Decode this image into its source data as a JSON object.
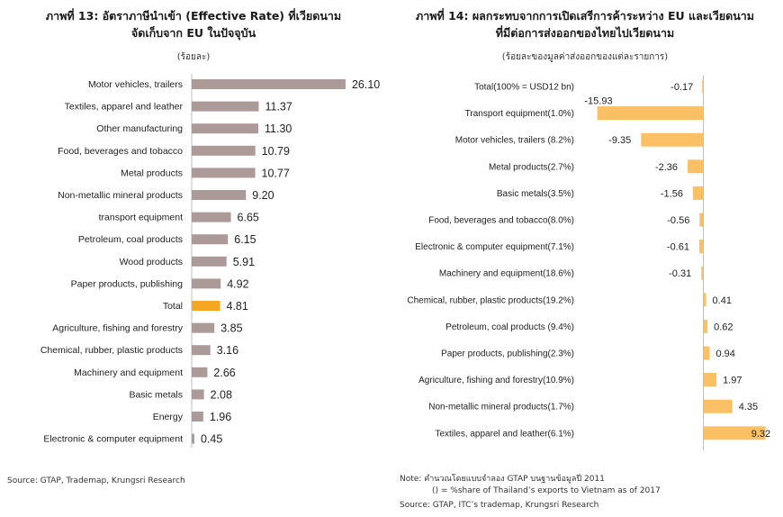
{
  "chart_data": [
    {
      "type": "bar",
      "orientation": "horizontal",
      "title": "ภาพที่ 13: อัตราภาษีนำเข้า (Effective Rate) ที่เวียดนาม",
      "subtitle": "จัดเก็บจาก EU ในปัจจุบัน",
      "unit_label": "(ร้อยละ)",
      "categories": [
        "Motor vehicles, trailers",
        "Textiles, apparel and leather",
        "Other manufacturing",
        "Food, beverages and tobacco",
        "Metal products",
        "Non-metallic mineral products",
        "transport equipment",
        "Petroleum, coal products",
        "Wood products",
        "Paper products, publishing",
        "Total",
        "Agriculture, fishing and forestry",
        "Chemical, rubber, plastic products",
        "Machinery and equipment",
        "Basic metals",
        "Energy",
        "Electronic & computer equipment"
      ],
      "values": [
        26.1,
        11.37,
        11.3,
        10.79,
        10.77,
        9.2,
        6.65,
        6.15,
        5.91,
        4.92,
        4.81,
        3.85,
        3.16,
        2.66,
        2.08,
        1.96,
        0.45
      ],
      "value_labels": [
        "26.10",
        "11.37",
        "11.30",
        "10.79",
        "10.77",
        "9.20",
        "6.65",
        "6.15",
        "5.91",
        "4.92",
        "4.81",
        "3.85",
        "3.16",
        "2.66",
        "2.08",
        "1.96",
        "0.45"
      ],
      "xlim": [
        0,
        30
      ],
      "grid": false,
      "legend": "none",
      "colors": {
        "bar": "#ab9a97",
        "highlight": "#f5a623"
      },
      "highlight_category": "Total",
      "source": "Source: GTAP, Trademap, Krungsri Research"
    },
    {
      "type": "bar",
      "orientation": "horizontal",
      "title": "ภาพที่ 14: ผลกระทบจากการเปิดเสรีการค้าระหว่าง EU และเวียดนาม",
      "subtitle": "ที่มีต่อการส่งออกของไทยไปเวียดนาม",
      "unit_label": "(ร้อยละของมูลค่าส่งออกของแต่ละรายการ)",
      "categories": [
        "Total(100% = USD12 bn)",
        "Transport equipment(1.0%)",
        "Motor vehicles, trailers (8.2%)",
        "Metal products(2.7%)",
        "Basic metals(3.5%)",
        "Food, beverages and tobacco(8.0%)",
        "Electronic & computer equipment(7.1%)",
        "Machinery and equipment(18.6%)",
        "Chemical, rubber, plastic products(19.2%)",
        "Petroleum, coal products (9.4%)",
        "Paper products, publishing(2.3%)",
        "Agriculture, fishing and forestry(10.9%)",
        "Non-metallic mineral products(1.7%)",
        "Textiles, apparel and leather(6.1%)"
      ],
      "values": [
        -0.17,
        -15.93,
        -9.35,
        -2.36,
        -1.56,
        -0.56,
        -0.61,
        -0.31,
        0.41,
        0.62,
        0.94,
        1.97,
        4.35,
        9.32
      ],
      "value_labels": [
        "-0.17",
        "-15.93",
        "-9.35",
        "-2.36",
        "-1.56",
        "-0.56",
        "-0.61",
        "-0.31",
        "0.41",
        "0.62",
        "0.94",
        "1.97",
        "4.35",
        "9.32"
      ],
      "xlim": [
        -16,
        10
      ],
      "grid": false,
      "legend": "none",
      "colors": {
        "bar": "#fbc064",
        "axis": "#bfbfbf"
      },
      "note_line1": "Note: คำนวณโดยแบบจำลอง GTAP บนฐานข้อมูลปี 2011",
      "note_line2": "() = %share of Thailand’s exports to Vietnam  as of 2017",
      "source": "Source: GTAP, ITC’s trademap, Krungsri Research"
    }
  ]
}
